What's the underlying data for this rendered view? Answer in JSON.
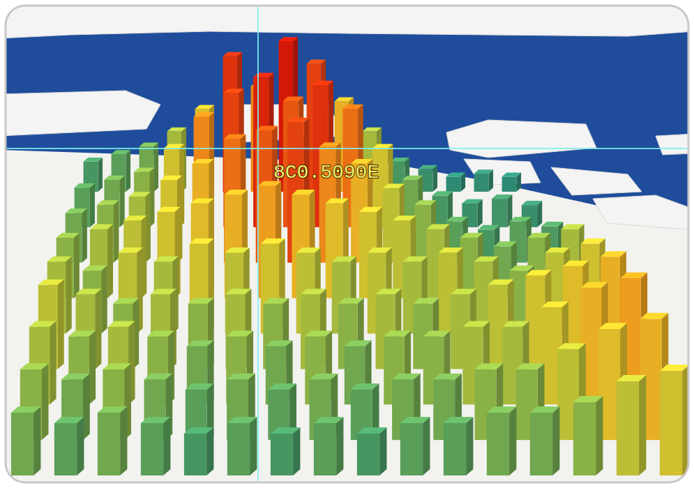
{
  "chart_data": {
    "type": "bar3d",
    "annotations": [
      "8C0.5090E"
    ],
    "tick_labels": false,
    "values": [
      [
        20,
        25,
        30,
        40,
        55,
        90,
        70,
        100,
        85,
        60,
        40,
        20,
        15,
        10,
        12,
        10
      ],
      [
        25,
        30,
        35,
        50,
        70,
        85,
        95,
        80,
        90,
        75,
        50,
        30,
        20,
        15,
        18,
        14
      ],
      [
        30,
        35,
        40,
        50,
        60,
        75,
        80,
        85,
        70,
        60,
        45,
        35,
        25,
        20,
        25,
        22
      ],
      [
        35,
        40,
        45,
        50,
        55,
        60,
        65,
        60,
        55,
        50,
        45,
        40,
        35,
        30,
        35,
        40
      ],
      [
        40,
        35,
        45,
        40,
        50,
        45,
        50,
        45,
        40,
        45,
        40,
        45,
        40,
        35,
        45,
        50
      ],
      [
        45,
        40,
        35,
        40,
        35,
        40,
        35,
        40,
        35,
        40,
        35,
        40,
        45,
        50,
        55,
        60
      ],
      [
        40,
        35,
        40,
        35,
        30,
        35,
        30,
        35,
        30,
        35,
        35,
        40,
        40,
        50,
        60,
        65
      ],
      [
        35,
        30,
        35,
        30,
        25,
        30,
        25,
        30,
        25,
        30,
        30,
        35,
        35,
        45,
        55,
        60
      ],
      [
        30,
        25,
        30,
        25,
        20,
        25,
        20,
        25,
        20,
        25,
        25,
        30,
        30,
        35,
        45,
        50
      ]
    ]
  }
}
